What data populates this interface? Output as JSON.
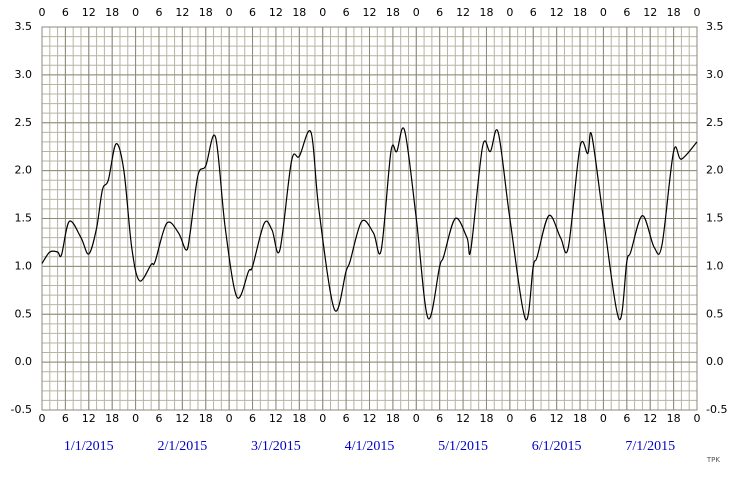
{
  "chart_data": {
    "type": "line",
    "x": [
      0,
      2,
      4,
      5,
      7,
      10,
      12,
      14,
      15.5,
      17,
      19,
      21,
      23,
      25,
      28,
      29,
      32,
      35,
      37,
      38,
      40,
      42,
      44.5,
      47,
      50,
      53,
      54,
      57,
      59,
      61,
      64,
      66,
      69,
      71,
      75,
      78,
      79,
      82,
      85,
      87,
      89.5,
      91,
      93,
      96,
      99,
      102,
      103,
      106,
      109,
      110,
      113,
      115,
      117,
      120,
      124,
      126,
      127,
      130,
      133,
      135,
      138,
      140,
      141,
      144,
      148,
      150,
      151,
      154,
      157,
      159,
      162,
      164,
      168
    ],
    "values": [
      1.03,
      1.15,
      1.15,
      1.12,
      1.47,
      1.3,
      1.13,
      1.4,
      1.8,
      1.9,
      2.28,
      2.0,
      1.2,
      0.85,
      1.02,
      1.05,
      1.45,
      1.35,
      1.17,
      1.35,
      1.95,
      2.05,
      2.35,
      1.4,
      0.68,
      0.95,
      1.0,
      1.45,
      1.38,
      1.17,
      2.1,
      2.15,
      2.4,
      1.6,
      0.55,
      0.95,
      1.05,
      1.47,
      1.35,
      1.17,
      2.2,
      2.2,
      2.42,
      1.5,
      0.46,
      1.0,
      1.1,
      1.5,
      1.3,
      1.18,
      2.25,
      2.2,
      2.4,
      1.5,
      0.45,
      1.0,
      1.1,
      1.53,
      1.3,
      1.2,
      2.25,
      2.18,
      2.37,
      1.5,
      0.45,
      1.05,
      1.15,
      1.53,
      1.2,
      1.22,
      2.2,
      2.12,
      2.3
    ],
    "color": "#000000",
    "xlim": [
      0,
      168
    ],
    "ylim": [
      -0.5,
      3.5
    ],
    "xticks": [
      0,
      6,
      12,
      18,
      {
        "value": 24,
        "label": "0"
      },
      {
        "value": 30,
        "label": "6"
      },
      {
        "value": 36,
        "label": "12"
      },
      {
        "value": 42,
        "label": "18"
      },
      {
        "value": 48,
        "label": "0"
      },
      {
        "value": 54,
        "label": "6"
      },
      {
        "value": 60,
        "label": "12"
      },
      {
        "value": 66,
        "label": "18"
      },
      {
        "value": 72,
        "label": "0"
      },
      {
        "value": 78,
        "label": "6"
      },
      {
        "value": 84,
        "label": "12"
      },
      {
        "value": 90,
        "label": "18"
      },
      {
        "value": 96,
        "label": "0"
      },
      {
        "value": 102,
        "label": "6"
      },
      {
        "value": 108,
        "label": "12"
      },
      {
        "value": 114,
        "label": "18"
      },
      {
        "value": 120,
        "label": "0"
      },
      {
        "value": 126,
        "label": "6"
      },
      {
        "value": 132,
        "label": "12"
      },
      {
        "value": 138,
        "label": "18"
      },
      {
        "value": 144,
        "label": "0"
      },
      {
        "value": 150,
        "label": "6"
      },
      {
        "value": 156,
        "label": "12"
      },
      {
        "value": 162,
        "label": "18"
      },
      {
        "value": 168,
        "label": "0"
      }
    ],
    "yticks": [
      -0.5,
      {
        "value": 0,
        "label": "0.0"
      },
      0.5,
      {
        "value": 1,
        "label": "1.0"
      },
      1.5,
      {
        "value": 2,
        "label": "2.0"
      },
      2.5,
      {
        "value": 3,
        "label": "3.0"
      },
      3.5
    ],
    "date_labels": [
      {
        "value": 12,
        "label": "1/1/2015"
      },
      {
        "value": 36,
        "label": "2/1/2015"
      },
      {
        "value": 60,
        "label": "3/1/2015"
      },
      {
        "value": 84,
        "label": "4/1/2015"
      },
      {
        "value": 108,
        "label": "5/1/2015"
      },
      {
        "value": 132,
        "label": "6/1/2015"
      },
      {
        "value": 156,
        "label": "7/1/2015"
      }
    ],
    "grid": true,
    "grid_minor": {
      "x": 2,
      "y": 0.1
    },
    "credit": "TPK"
  }
}
